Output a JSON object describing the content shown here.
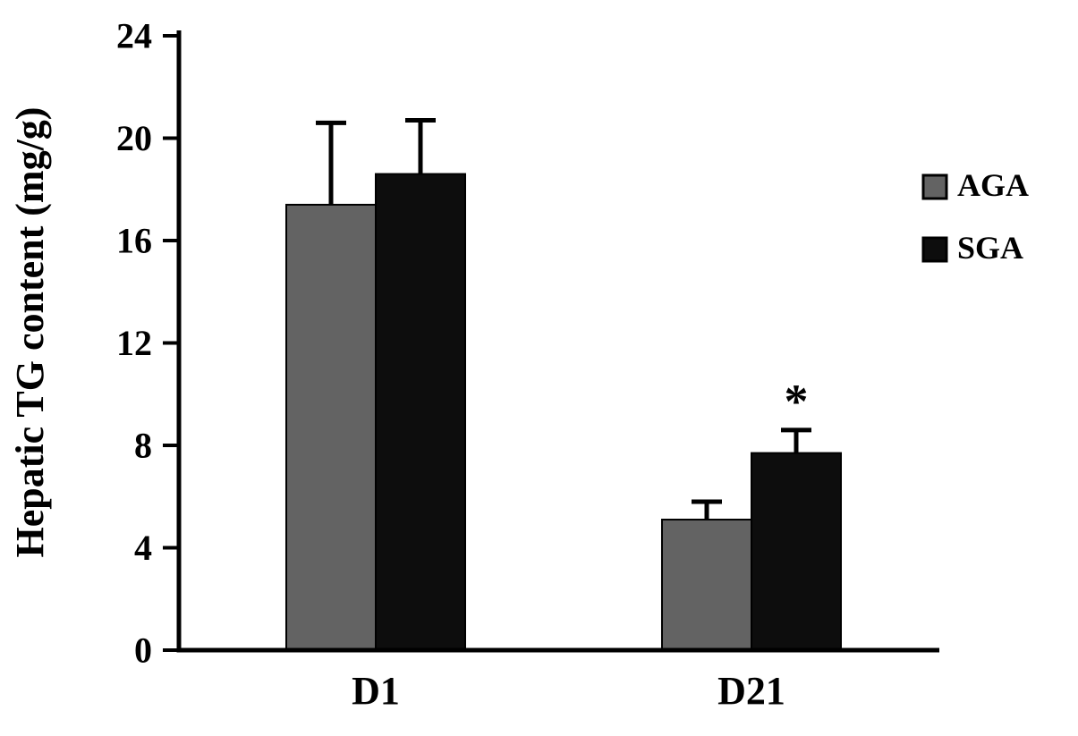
{
  "figure": {
    "background": "#ffffff"
  },
  "chart_data": {
    "type": "bar",
    "title": "",
    "xlabel": "",
    "ylabel": "Hepatic TG content (mg/g)",
    "categories": [
      "D1",
      "D21"
    ],
    "series": [
      {
        "name": "AGA",
        "color": "#636363",
        "values": [
          17.4,
          5.1
        ],
        "errors_plus": [
          3.2,
          0.7
        ]
      },
      {
        "name": "SGA",
        "color": "#0d0d0d",
        "values": [
          18.6,
          7.7
        ],
        "errors_plus": [
          2.1,
          0.9
        ]
      }
    ],
    "ylim": [
      0,
      24
    ],
    "yticks": [
      0,
      4,
      8,
      12,
      16,
      20,
      24
    ],
    "grid": false,
    "legend_position": "right",
    "bar_outline": "#000000",
    "error_bar_color": "#000000",
    "annotations": [
      {
        "text": "*",
        "category": "D21",
        "series": "SGA"
      }
    ]
  }
}
